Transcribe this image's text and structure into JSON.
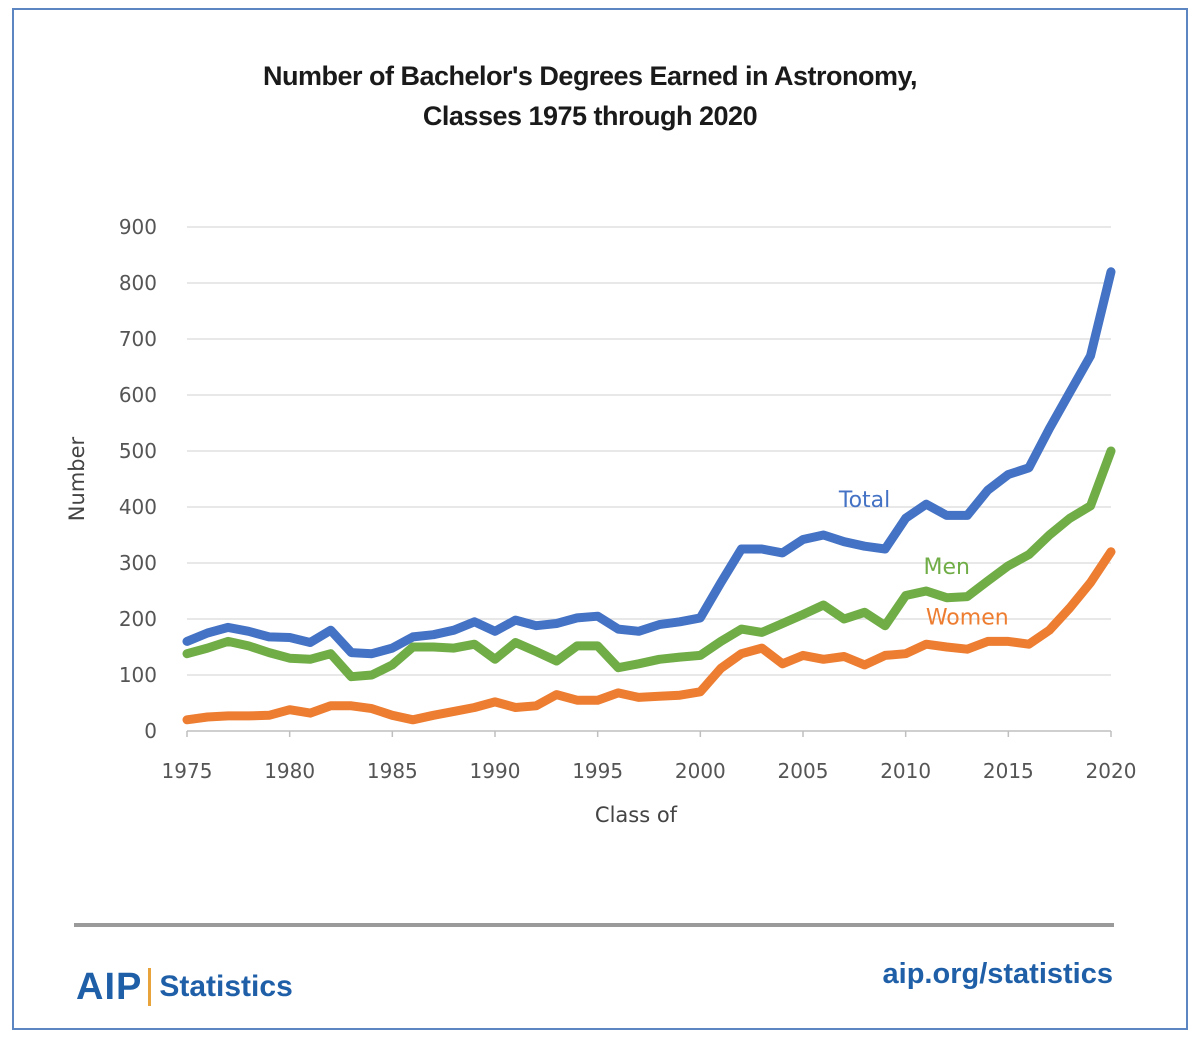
{
  "title_line1": "Number of Bachelor's Degrees Earned in Astronomy,",
  "title_line2": "Classes 1975 through 2020",
  "footer": {
    "brand_logo": "AIP",
    "brand_label": "Statistics",
    "site": "aip.org/statistics"
  },
  "chart_data": {
    "type": "line",
    "title": "Number of Bachelor's Degrees Earned in Astronomy, Classes 1975 through 2020",
    "xlabel": "Class of",
    "ylabel": "Number",
    "xlim": [
      1975,
      2020
    ],
    "ylim": [
      0,
      900
    ],
    "x_ticks": [
      1975,
      1980,
      1985,
      1990,
      1995,
      2000,
      2005,
      2010,
      2015,
      2020
    ],
    "y_ticks": [
      0,
      100,
      200,
      300,
      400,
      500,
      600,
      700,
      800,
      900
    ],
    "grid": "horizontal",
    "legend": "inline labels",
    "x": [
      1975,
      1976,
      1977,
      1978,
      1979,
      1980,
      1981,
      1982,
      1983,
      1984,
      1985,
      1986,
      1987,
      1988,
      1989,
      1990,
      1991,
      1992,
      1993,
      1994,
      1995,
      1996,
      1997,
      1998,
      1999,
      2000,
      2001,
      2002,
      2003,
      2004,
      2005,
      2006,
      2007,
      2008,
      2009,
      2010,
      2011,
      2012,
      2013,
      2014,
      2015,
      2016,
      2017,
      2018,
      2019,
      2020
    ],
    "series": [
      {
        "name": "Total",
        "color": "#4472c4",
        "values": [
          160,
          175,
          185,
          178,
          168,
          167,
          158,
          180,
          140,
          138,
          148,
          168,
          172,
          180,
          195,
          178,
          198,
          188,
          192,
          202,
          205,
          182,
          178,
          190,
          195,
          202,
          265,
          325,
          325,
          318,
          342,
          350,
          338,
          330,
          325,
          380,
          405,
          385,
          385,
          430,
          458,
          470,
          540,
          605,
          670,
          820
        ]
      },
      {
        "name": "Men",
        "color": "#70ad47",
        "values": [
          138,
          148,
          160,
          152,
          140,
          130,
          128,
          138,
          97,
          100,
          118,
          150,
          150,
          148,
          155,
          128,
          158,
          142,
          125,
          152,
          152,
          113,
          120,
          128,
          132,
          135,
          160,
          182,
          176,
          192,
          208,
          225,
          200,
          212,
          188,
          242,
          250,
          238,
          240,
          268,
          295,
          315,
          350,
          380,
          402,
          500
        ]
      },
      {
        "name": "Women",
        "color": "#ed7d31",
        "values": [
          20,
          25,
          27,
          27,
          28,
          38,
          32,
          45,
          45,
          40,
          28,
          20,
          28,
          35,
          42,
          52,
          42,
          45,
          65,
          55,
          55,
          68,
          60,
          62,
          64,
          70,
          112,
          138,
          148,
          120,
          135,
          128,
          133,
          118,
          135,
          138,
          155,
          150,
          146,
          160,
          160,
          155,
          180,
          220,
          265,
          320
        ]
      }
    ]
  }
}
